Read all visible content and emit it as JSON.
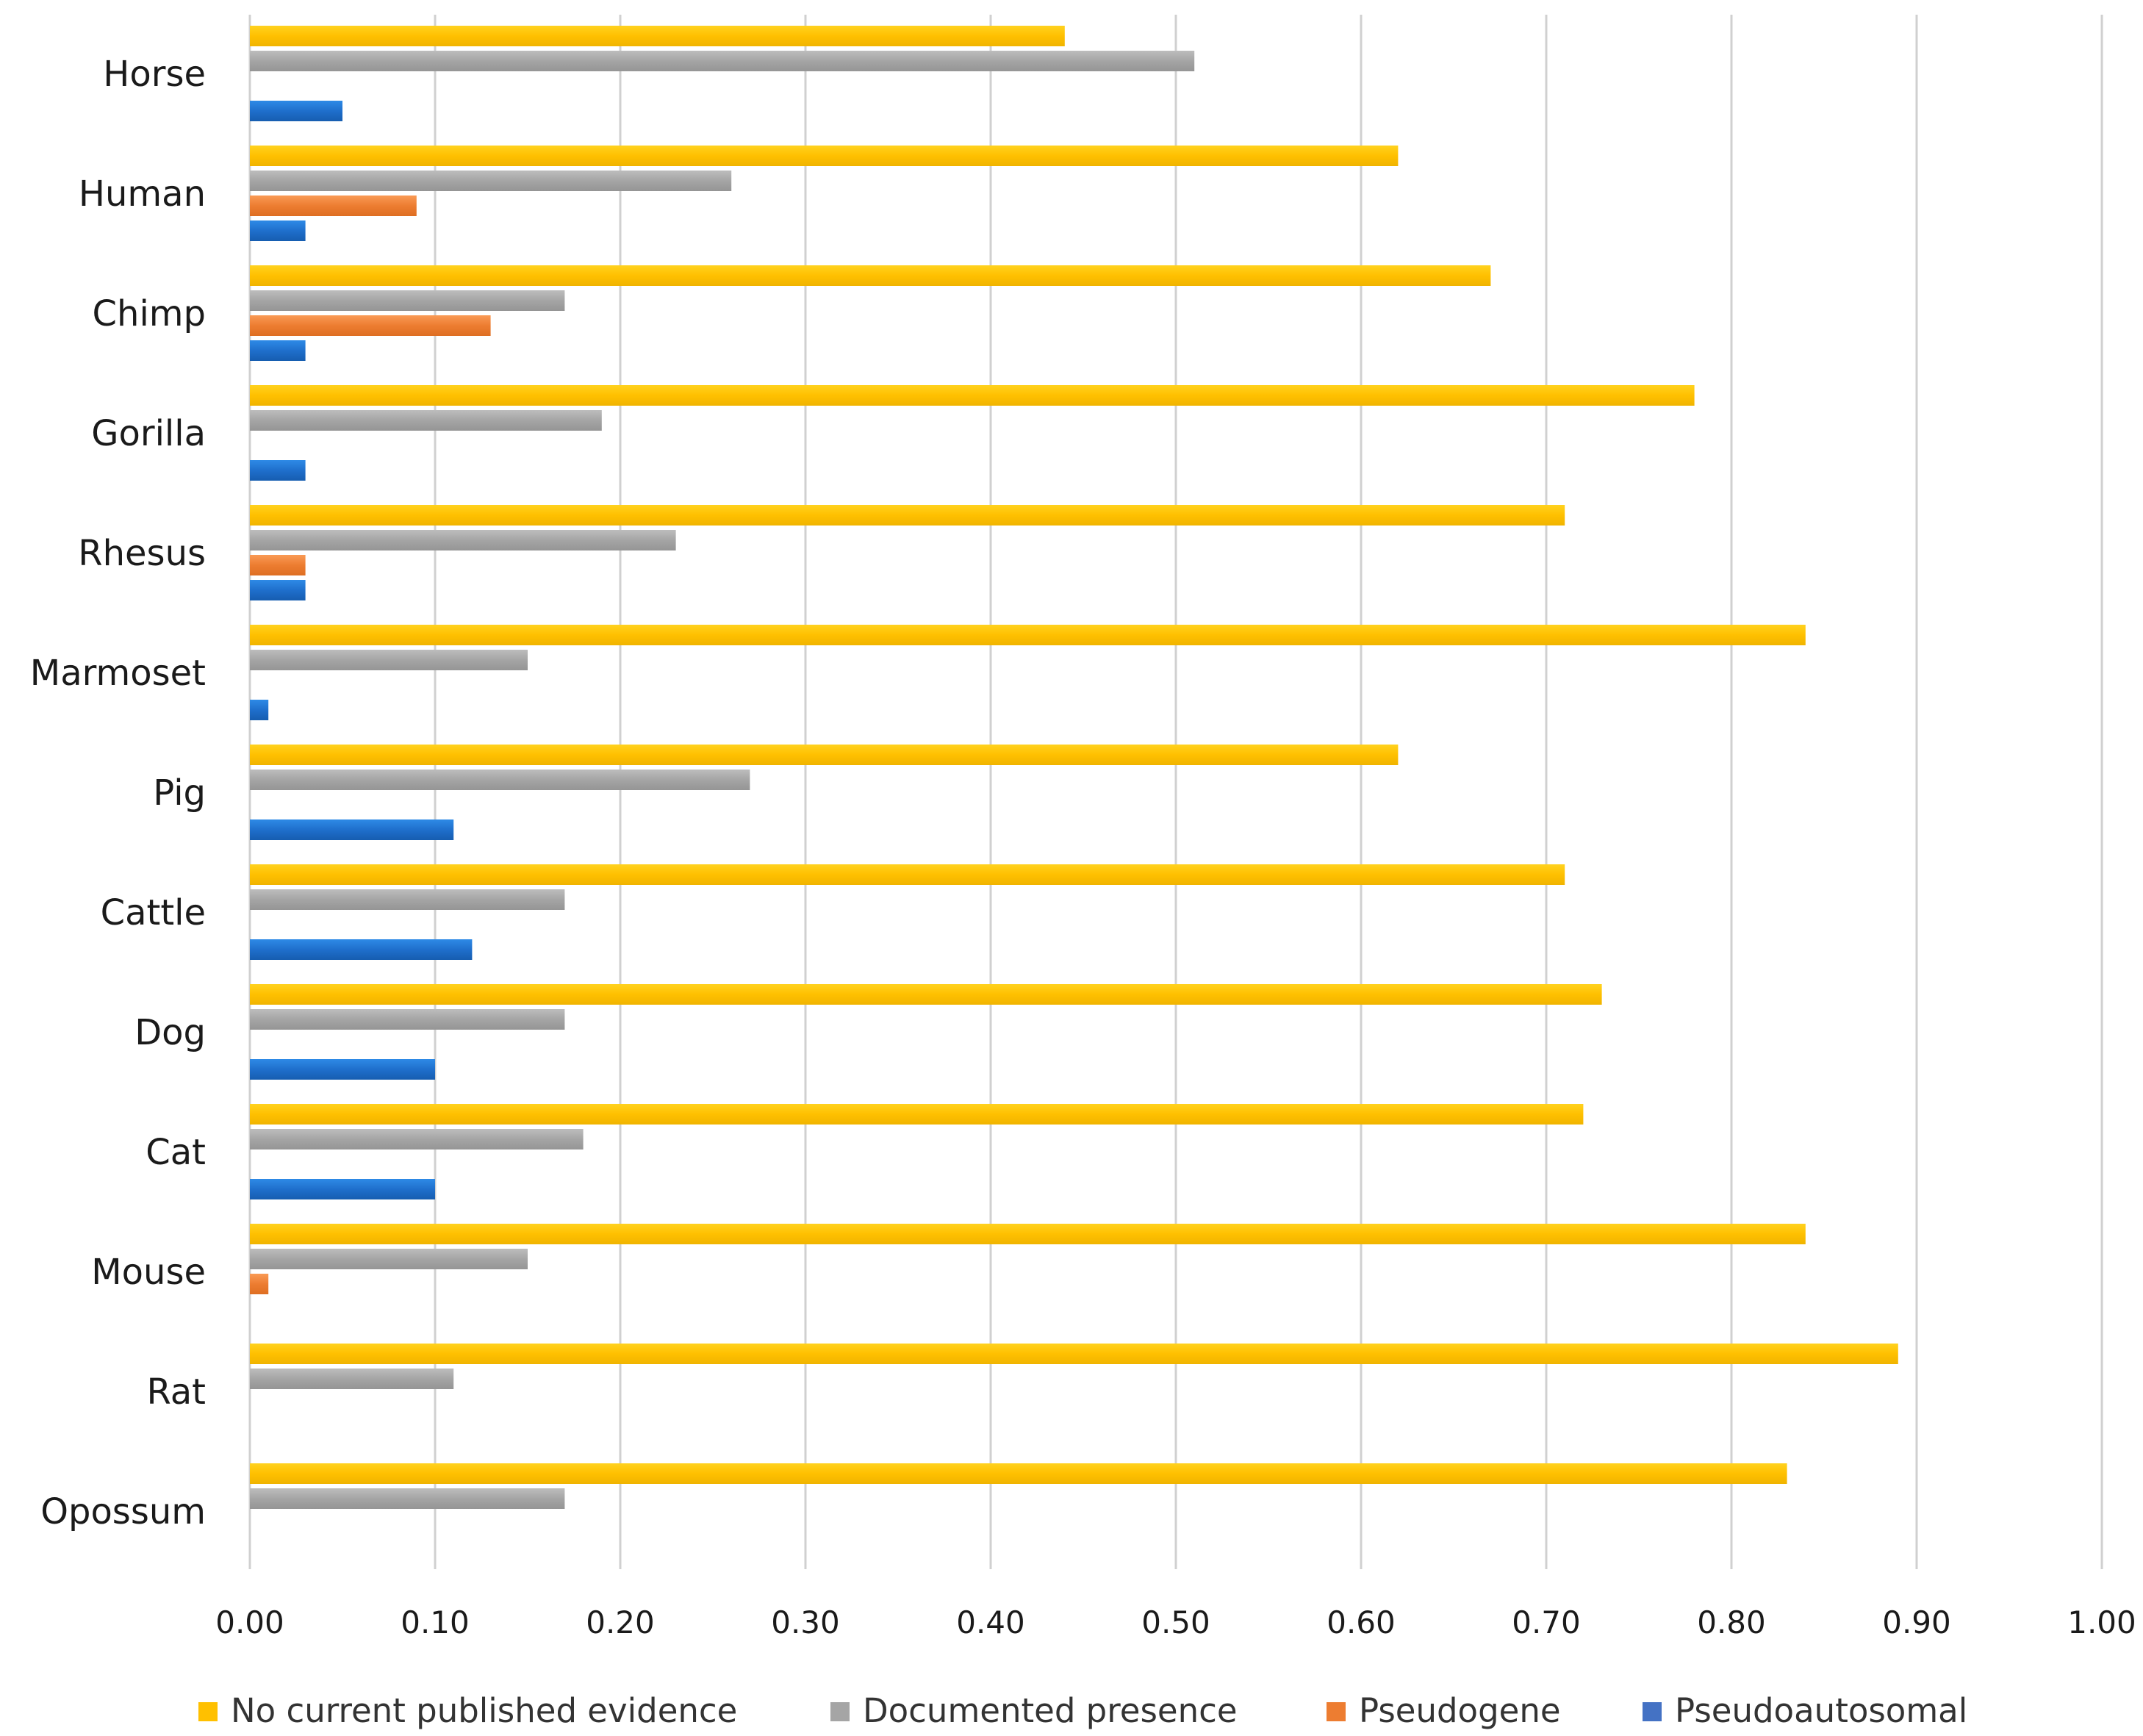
{
  "chart_data": {
    "type": "bar",
    "orientation": "horizontal",
    "title": "",
    "xlabel": "",
    "ylabel": "",
    "xlim": [
      0,
      1
    ],
    "x_ticks": [
      "0.00",
      "0.10",
      "0.20",
      "0.30",
      "0.40",
      "0.50",
      "0.60",
      "0.70",
      "0.80",
      "0.90",
      "1.00"
    ],
    "grid": true,
    "legend_position": "bottom",
    "categories": [
      "Horse",
      "Human",
      "Chimp",
      "Gorilla",
      "Rhesus",
      "Marmoset",
      "Pig",
      "Cattle",
      "Dog",
      "Cat",
      "Mouse",
      "Rat",
      "Opossum"
    ],
    "series": [
      {
        "name": "No current published evidence",
        "color": "#FFC000",
        "values": [
          0.44,
          0.62,
          0.67,
          0.78,
          0.71,
          0.84,
          0.62,
          0.71,
          0.73,
          0.72,
          0.84,
          0.89,
          0.83
        ]
      },
      {
        "name": "Documented presence",
        "color": "#A5A5A5",
        "values": [
          0.51,
          0.26,
          0.17,
          0.19,
          0.23,
          0.15,
          0.27,
          0.17,
          0.17,
          0.18,
          0.15,
          0.11,
          0.17
        ]
      },
      {
        "name": "Pseudogene",
        "color": "#ED7D31",
        "values": [
          0,
          0.09,
          0.13,
          0,
          0.03,
          0,
          0,
          0,
          0,
          0,
          0.01,
          0,
          0
        ]
      },
      {
        "name": "Pseudoautosomal",
        "color": "#4472C4",
        "values": [
          0.05,
          0.03,
          0.03,
          0.03,
          0.03,
          0.01,
          0.11,
          0.12,
          0.1,
          0.1,
          0,
          0,
          0
        ]
      }
    ]
  }
}
